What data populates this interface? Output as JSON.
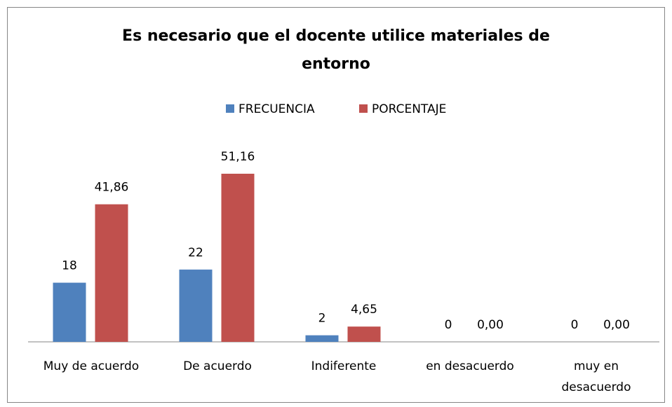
{
  "chart_data": {
    "type": "bar",
    "title": "Es necesario que el docente utilice materiales de entorno",
    "categories": [
      "Muy de acuerdo",
      "De acuerdo",
      "Indiferente",
      "en desacuerdo",
      "muy en desacuerdo"
    ],
    "series": [
      {
        "name": "FRECUENCIA",
        "color": "#4f81bd",
        "values": [
          18,
          22,
          2,
          0,
          0
        ]
      },
      {
        "name": "PORCENTAJE",
        "color": "#c0504d",
        "values": [
          41.86,
          51.16,
          4.65,
          0,
          0
        ],
        "value_labels": [
          "41,86",
          "51,16",
          "4,65",
          "0,00",
          "0,00"
        ]
      }
    ],
    "legend": "top"
  }
}
